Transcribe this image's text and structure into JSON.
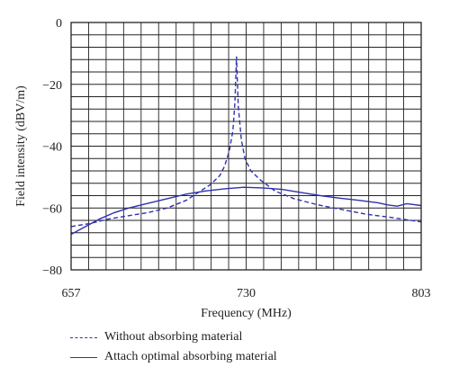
{
  "chart_data": {
    "type": "line",
    "title": "",
    "xlabel": "Frequency (MHz)",
    "ylabel": "Field intensity (dBV/m)",
    "xlim": [
      657,
      803
    ],
    "ylim": [
      -80,
      0
    ],
    "x_ticks": [
      657,
      730,
      803
    ],
    "y_ticks": [
      0,
      -20,
      -40,
      -60,
      -80
    ],
    "grid": true,
    "legend_position": "bottom-left",
    "series": [
      {
        "name": "Without absorbing material",
        "style": "dashed",
        "color": "#3030b0",
        "x": [
          657,
          665,
          673,
          681,
          689,
          697,
          705,
          711,
          715,
          719,
          721,
          723,
          724.5,
          725.3,
          726,
          726.7,
          728,
          729.5,
          732,
          736,
          742,
          750,
          760,
          770,
          780,
          790,
          803
        ],
        "y": [
          -66,
          -65,
          -63.5,
          -62.5,
          -61.5,
          -60,
          -57.5,
          -54.5,
          -52.5,
          -49.5,
          -46.5,
          -41.5,
          -35,
          -26,
          -11,
          -27,
          -38,
          -44,
          -48,
          -51,
          -54.5,
          -57,
          -59,
          -60.5,
          -62,
          -63,
          -64.5
        ]
      },
      {
        "name": "Attach optimal absorbing material",
        "style": "solid",
        "color": "#3030b0",
        "x": [
          657,
          663,
          669,
          675,
          681,
          689,
          697,
          705,
          713,
          721,
          729,
          737,
          745,
          753,
          761,
          769,
          777,
          785,
          789,
          793,
          797,
          803
        ],
        "y": [
          -68.5,
          -66,
          -63.5,
          -61.5,
          -60,
          -58.5,
          -57,
          -55.5,
          -54.5,
          -53.8,
          -53.3,
          -53.5,
          -54,
          -55,
          -56,
          -56.8,
          -57.5,
          -58.3,
          -59,
          -59.4,
          -58.6,
          -59.2
        ]
      }
    ]
  }
}
